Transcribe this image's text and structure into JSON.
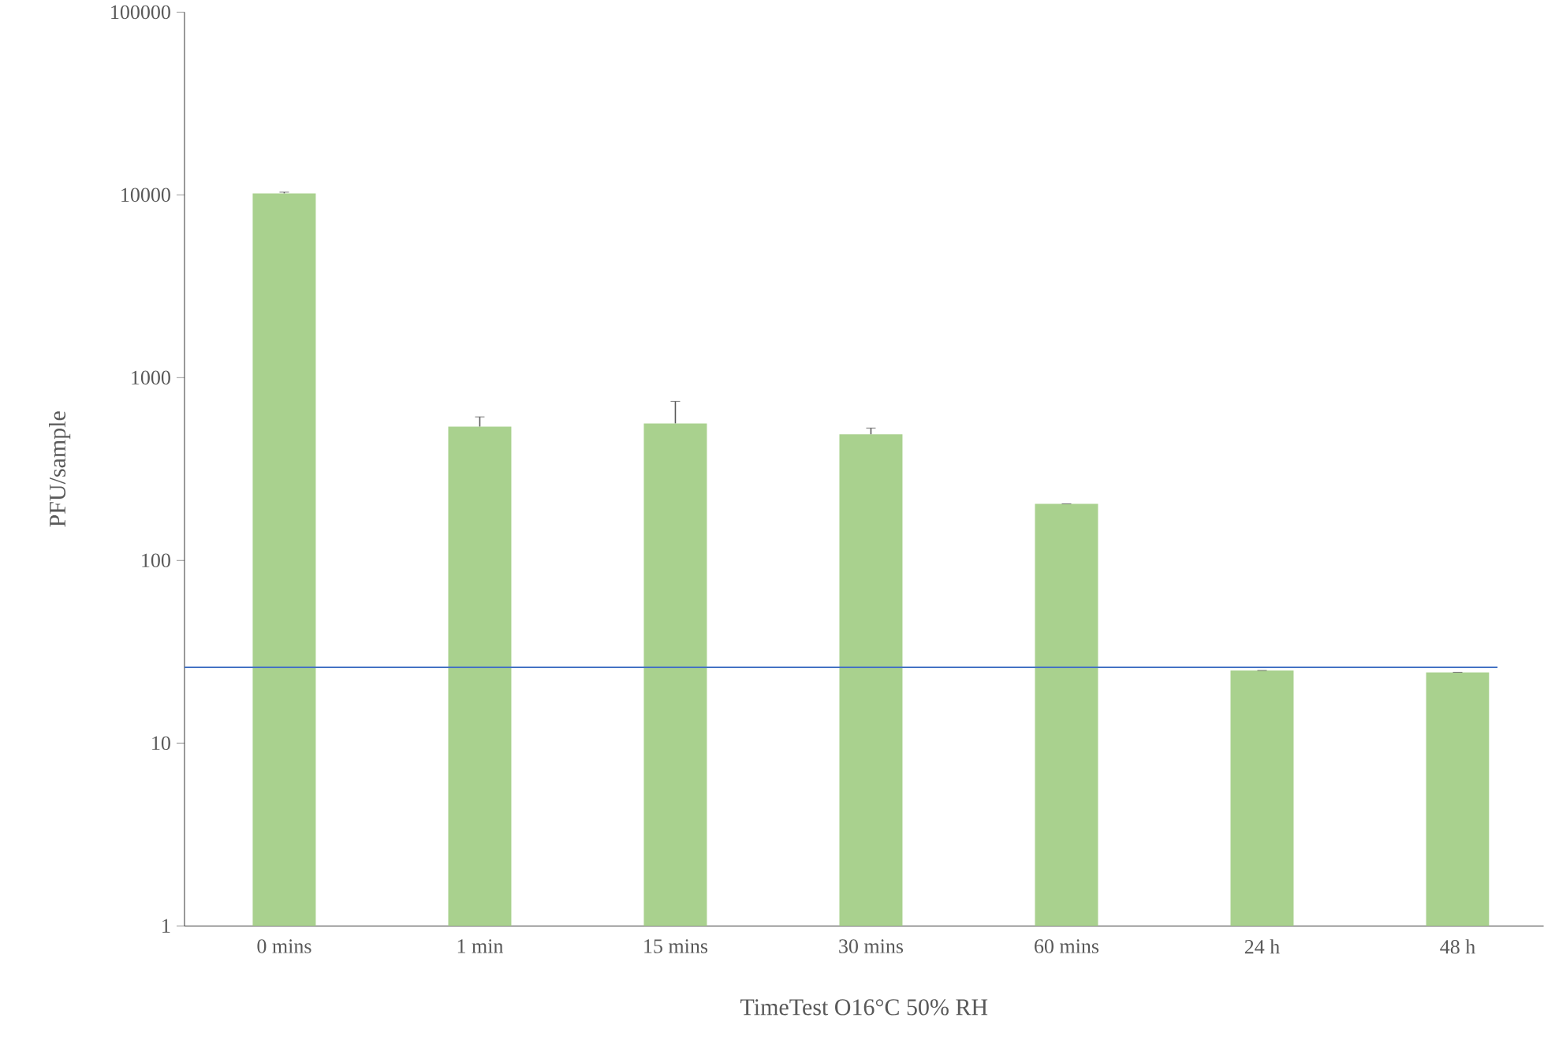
{
  "chart_data": {
    "type": "bar",
    "xlabel": "TimeTest O16°C 50% RH",
    "ylabel": "PFU/sample",
    "categories": [
      "0 mins",
      "1 min",
      "15 mins",
      "30 mins",
      "60 mins",
      "24 h",
      "48 h"
    ],
    "values": [
      10200,
      540,
      562,
      490,
      204,
      25,
      24.4
    ],
    "errors": [
      150,
      70,
      180,
      40,
      null,
      null,
      null
    ],
    "color": "#a9d18e",
    "log": true,
    "ylim": [
      1,
      100000
    ],
    "yticks": [
      1,
      10,
      100,
      1000,
      10000,
      100000
    ],
    "ref_lines": [
      {
        "axis": "y",
        "value": 26,
        "color": "#4472c4"
      }
    ]
  }
}
